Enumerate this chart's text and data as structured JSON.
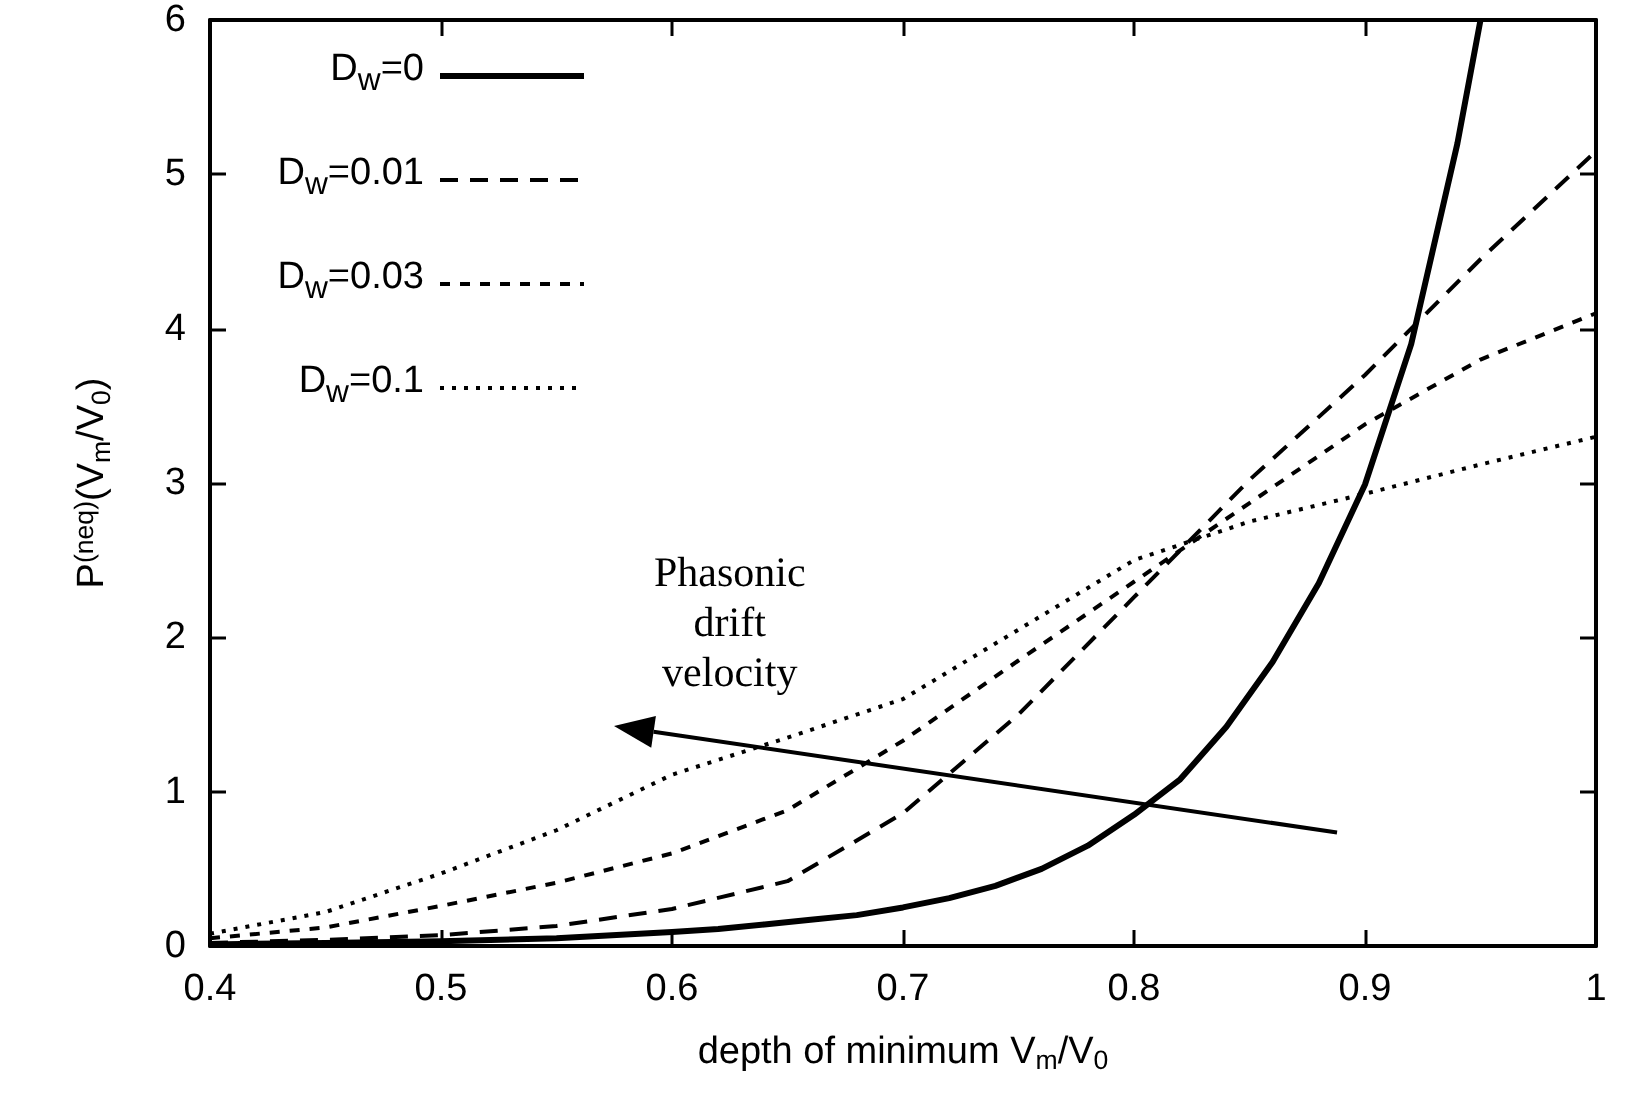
{
  "chart_data": {
    "type": "line",
    "xlabel": "depth of minimum V$_{m}$/V$_{0}$",
    "ylabel": "P$^{(neq)}$(V$_{m}$/V$_{0}$)",
    "x": [
      0.4,
      0.45,
      0.5,
      0.55,
      0.6,
      0.62,
      0.64,
      0.66,
      0.68,
      0.7,
      0.72,
      0.74,
      0.76,
      0.78,
      0.8,
      0.82,
      0.84,
      0.86,
      0.88,
      0.9,
      0.92,
      0.94,
      0.95
    ],
    "xlim": [
      0.4,
      1
    ],
    "xticks": [
      0.4,
      0.5,
      0.6,
      0.7,
      0.8,
      0.9,
      1
    ],
    "ylim": [
      0,
      6
    ],
    "yticks": [
      0,
      1,
      2,
      3,
      4,
      5,
      6
    ],
    "grid": false,
    "legend": "top left",
    "marker": "none",
    "series": [
      {
        "name": "D$_{w}$=0",
        "color": "#000000",
        "line_style": "solid",
        "values": [
          0.01,
          0.02,
          0.03,
          0.05,
          0.09,
          0.11,
          0.14,
          0.17,
          0.2,
          0.25,
          0.31,
          0.39,
          0.5,
          0.65,
          0.85,
          1.08,
          1.42,
          1.84,
          2.35,
          2.99,
          3.9,
          5.2,
          6
        ]
      },
      {
        "name": "D$_{w}$=0.01",
        "color": "#000000",
        "line_style": "dashed",
        "x": [
          0.4,
          0.45,
          0.5,
          0.55,
          0.6,
          0.65,
          0.7,
          0.75,
          0.8,
          0.85,
          0.9,
          0.95,
          1
        ],
        "values": [
          0.02,
          0.04,
          0.07,
          0.13,
          0.24,
          0.42,
          0.86,
          1.5,
          2.26,
          3.02,
          3.7,
          4.45,
          5.15
        ]
      },
      {
        "name": "D$_{w}$=0.03",
        "color": "#000000",
        "line_style": "dashed",
        "x": [
          0.4,
          0.45,
          0.5,
          0.55,
          0.6,
          0.65,
          0.7,
          0.75,
          0.8,
          0.85,
          0.9,
          0.95,
          1
        ],
        "values": [
          0.05,
          0.12,
          0.26,
          0.41,
          0.6,
          0.88,
          1.33,
          1.85,
          2.36,
          2.87,
          3.38,
          3.8,
          4.1
        ]
      },
      {
        "name": "D$_{w}$=0.1",
        "color": "#000000",
        "line_style": "dotted",
        "x": [
          0.4,
          0.45,
          0.5,
          0.55,
          0.6,
          0.65,
          0.7,
          0.75,
          0.8,
          0.85,
          0.9,
          0.95,
          1
        ],
        "values": [
          0.08,
          0.22,
          0.47,
          0.75,
          1.11,
          1.35,
          1.6,
          2.05,
          2.5,
          2.75,
          2.93,
          3.12,
          3.3
        ]
      }
    ],
    "annotations": [
      "Phasonic drift velocity"
    ]
  }
}
